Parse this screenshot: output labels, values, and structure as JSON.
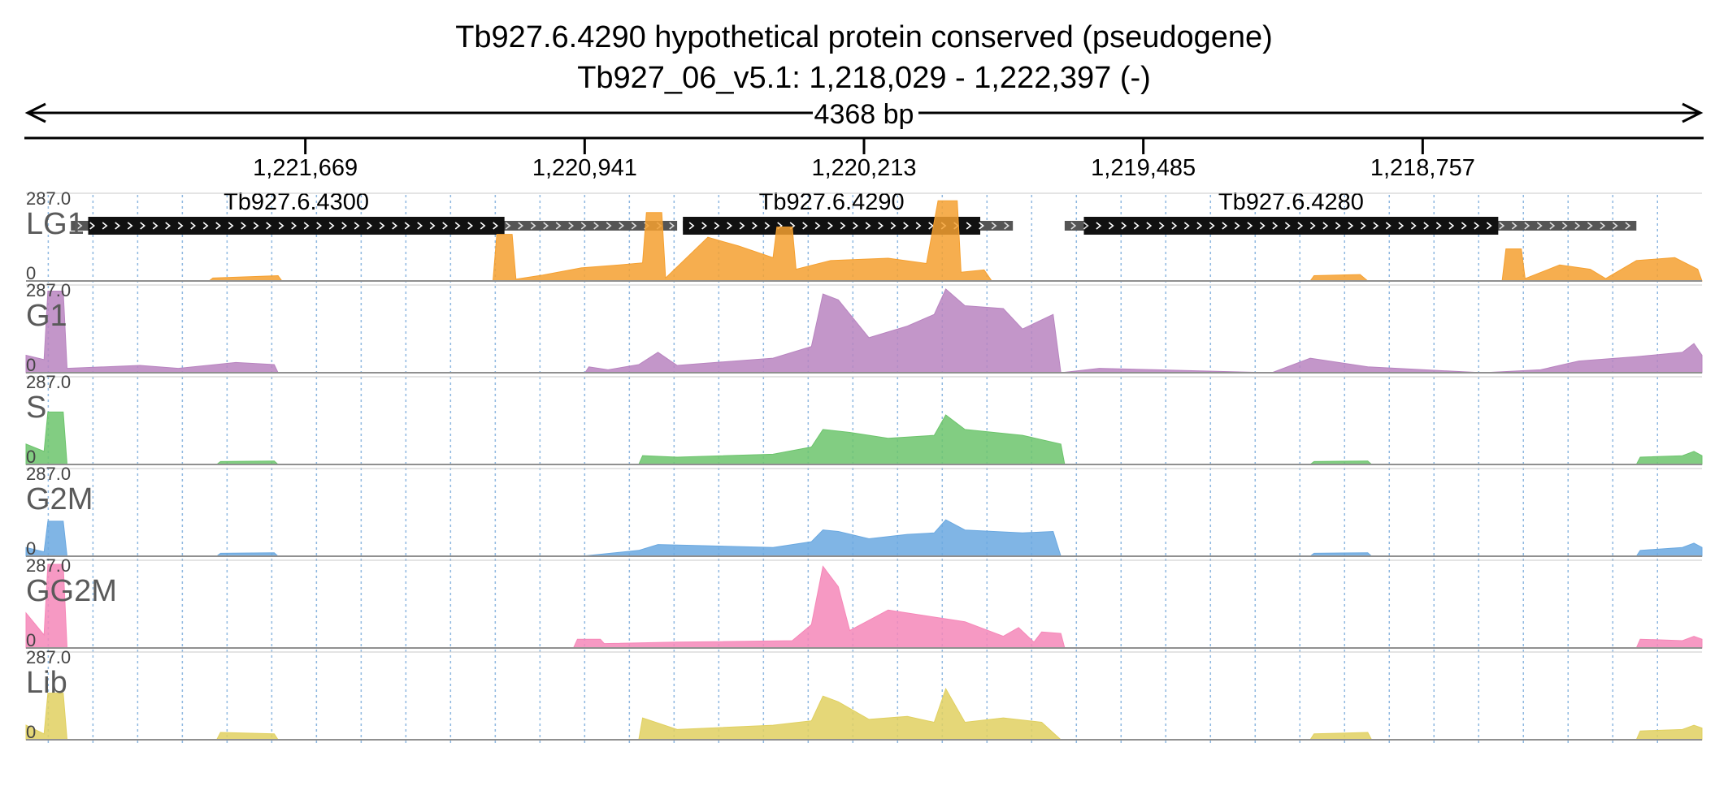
{
  "chart_data": {
    "type": "area",
    "title": "Tb927.6.4290  hypothetical protein  conserved (pseudogene)",
    "subtitle": "Tb927_06_v5.1: 1,218,029 - 1,222,397 (-)",
    "span_label": "4368 bp",
    "x_range": [
      1222397,
      1218029
    ],
    "x_ticks": [
      1221669,
      1220941,
      1220213,
      1219485,
      1218757
    ],
    "x_tick_labels": [
      "1,221,669",
      "1,220,941",
      "1,220,213",
      "1,219,485",
      "1,218,757"
    ],
    "genes": [
      {
        "name": "Tb927.6.4300",
        "utr_start": 1222280,
        "cds_start": 1222235,
        "cds_end": 1221150,
        "utr_end": 1220700
      },
      {
        "name": "Tb927.6.4290",
        "utr_start": 1220685,
        "cds_start": 1220685,
        "cds_end": 1219910,
        "utr_end": 1219825
      },
      {
        "name": "Tb927.6.4280",
        "utr_start": 1219690,
        "cds_start": 1219640,
        "cds_end": 1218560,
        "utr_end": 1218200
      }
    ],
    "grid": true,
    "ylim": [
      0,
      287.0
    ],
    "y_max_label": "287.0",
    "y_min_label": "0",
    "series": [
      {
        "name": "LG1",
        "color": "#f5a030",
        "points": [
          [
            1222397,
            0
          ],
          [
            1221920,
            0
          ],
          [
            1221910,
            10
          ],
          [
            1221740,
            18
          ],
          [
            1221730,
            0
          ],
          [
            1221180,
            0
          ],
          [
            1221170,
            160
          ],
          [
            1221130,
            160
          ],
          [
            1221120,
            6
          ],
          [
            1221050,
            20
          ],
          [
            1220950,
            45
          ],
          [
            1220850,
            55
          ],
          [
            1220790,
            62
          ],
          [
            1220780,
            235
          ],
          [
            1220740,
            235
          ],
          [
            1220730,
            10
          ],
          [
            1220620,
            150
          ],
          [
            1220540,
            120
          ],
          [
            1220450,
            80
          ],
          [
            1220440,
            185
          ],
          [
            1220400,
            185
          ],
          [
            1220390,
            40
          ],
          [
            1220300,
            70
          ],
          [
            1220150,
            78
          ],
          [
            1220050,
            60
          ],
          [
            1220020,
            275
          ],
          [
            1219970,
            275
          ],
          [
            1219960,
            30
          ],
          [
            1219900,
            38
          ],
          [
            1219880,
            0
          ],
          [
            1219050,
            0
          ],
          [
            1219040,
            18
          ],
          [
            1218920,
            22
          ],
          [
            1218900,
            0
          ],
          [
            1218550,
            0
          ],
          [
            1218540,
            110
          ],
          [
            1218500,
            110
          ],
          [
            1218490,
            8
          ],
          [
            1218400,
            55
          ],
          [
            1218320,
            40
          ],
          [
            1218280,
            8
          ],
          [
            1218200,
            70
          ],
          [
            1218100,
            80
          ],
          [
            1218040,
            40
          ],
          [
            1218029,
            0
          ]
        ]
      },
      {
        "name": "G1",
        "color": "#b884c0",
        "points": [
          [
            1222397,
            60
          ],
          [
            1222350,
            45
          ],
          [
            1222340,
            280
          ],
          [
            1222300,
            280
          ],
          [
            1222290,
            15
          ],
          [
            1222100,
            25
          ],
          [
            1222000,
            15
          ],
          [
            1221850,
            35
          ],
          [
            1221750,
            28
          ],
          [
            1221740,
            0
          ],
          [
            1220940,
            0
          ],
          [
            1220930,
            20
          ],
          [
            1220880,
            10
          ],
          [
            1220800,
            28
          ],
          [
            1220750,
            70
          ],
          [
            1220700,
            25
          ],
          [
            1220600,
            35
          ],
          [
            1220450,
            50
          ],
          [
            1220350,
            90
          ],
          [
            1220320,
            270
          ],
          [
            1220280,
            250
          ],
          [
            1220200,
            120
          ],
          [
            1220100,
            160
          ],
          [
            1220030,
            200
          ],
          [
            1220000,
            290
          ],
          [
            1219950,
            230
          ],
          [
            1219850,
            220
          ],
          [
            1219800,
            150
          ],
          [
            1219720,
            200
          ],
          [
            1219700,
            0
          ],
          [
            1219600,
            15
          ],
          [
            1219450,
            10
          ],
          [
            1219150,
            0
          ],
          [
            1219050,
            50
          ],
          [
            1218900,
            20
          ],
          [
            1218600,
            0
          ],
          [
            1218450,
            10
          ],
          [
            1218350,
            40
          ],
          [
            1218200,
            55
          ],
          [
            1218080,
            70
          ],
          [
            1218050,
            100
          ],
          [
            1218029,
            60
          ]
        ]
      },
      {
        "name": "S",
        "color": "#6cc46c",
        "points": [
          [
            1222397,
            70
          ],
          [
            1222350,
            45
          ],
          [
            1222340,
            180
          ],
          [
            1222300,
            180
          ],
          [
            1222290,
            0
          ],
          [
            1221900,
            0
          ],
          [
            1221890,
            10
          ],
          [
            1221750,
            12
          ],
          [
            1221740,
            0
          ],
          [
            1220800,
            0
          ],
          [
            1220790,
            30
          ],
          [
            1220700,
            25
          ],
          [
            1220450,
            35
          ],
          [
            1220350,
            60
          ],
          [
            1220320,
            120
          ],
          [
            1220250,
            110
          ],
          [
            1220150,
            90
          ],
          [
            1220030,
            100
          ],
          [
            1220000,
            170
          ],
          [
            1219950,
            120
          ],
          [
            1219800,
            100
          ],
          [
            1219700,
            70
          ],
          [
            1219690,
            0
          ],
          [
            1219050,
            0
          ],
          [
            1219040,
            10
          ],
          [
            1218900,
            12
          ],
          [
            1218890,
            0
          ],
          [
            1218200,
            0
          ],
          [
            1218190,
            25
          ],
          [
            1218080,
            30
          ],
          [
            1218050,
            45
          ],
          [
            1218029,
            30
          ]
        ]
      },
      {
        "name": "G2M",
        "color": "#6aa8e0",
        "points": [
          [
            1222397,
            30
          ],
          [
            1222350,
            15
          ],
          [
            1222340,
            120
          ],
          [
            1222300,
            120
          ],
          [
            1222290,
            0
          ],
          [
            1221900,
            0
          ],
          [
            1221890,
            10
          ],
          [
            1221750,
            12
          ],
          [
            1221740,
            0
          ],
          [
            1220950,
            0
          ],
          [
            1220800,
            20
          ],
          [
            1220750,
            40
          ],
          [
            1220450,
            30
          ],
          [
            1220350,
            50
          ],
          [
            1220320,
            90
          ],
          [
            1220280,
            85
          ],
          [
            1220200,
            60
          ],
          [
            1220100,
            75
          ],
          [
            1220030,
            80
          ],
          [
            1220000,
            125
          ],
          [
            1219950,
            90
          ],
          [
            1219800,
            80
          ],
          [
            1219720,
            85
          ],
          [
            1219700,
            0
          ],
          [
            1219050,
            0
          ],
          [
            1219040,
            10
          ],
          [
            1218900,
            12
          ],
          [
            1218890,
            0
          ],
          [
            1218200,
            0
          ],
          [
            1218190,
            20
          ],
          [
            1218080,
            30
          ],
          [
            1218050,
            45
          ],
          [
            1218029,
            30
          ]
        ]
      },
      {
        "name": "GG2M",
        "color": "#f587b8",
        "points": [
          [
            1222397,
            120
          ],
          [
            1222350,
            45
          ],
          [
            1222340,
            290
          ],
          [
            1222300,
            290
          ],
          [
            1222290,
            0
          ],
          [
            1220970,
            0
          ],
          [
            1220960,
            30
          ],
          [
            1220900,
            30
          ],
          [
            1220890,
            15
          ],
          [
            1220700,
            20
          ],
          [
            1220400,
            25
          ],
          [
            1220350,
            80
          ],
          [
            1220320,
            280
          ],
          [
            1220280,
            210
          ],
          [
            1220250,
            60
          ],
          [
            1220150,
            130
          ],
          [
            1220050,
            110
          ],
          [
            1219950,
            90
          ],
          [
            1219850,
            40
          ],
          [
            1219810,
            70
          ],
          [
            1219770,
            20
          ],
          [
            1219750,
            55
          ],
          [
            1219700,
            50
          ],
          [
            1219690,
            0
          ],
          [
            1218200,
            0
          ],
          [
            1218190,
            30
          ],
          [
            1218080,
            25
          ],
          [
            1218050,
            40
          ],
          [
            1218029,
            30
          ]
        ]
      },
      {
        "name": "Lib",
        "color": "#e0d060",
        "points": [
          [
            1222397,
            50
          ],
          [
            1222350,
            20
          ],
          [
            1222340,
            160
          ],
          [
            1222300,
            160
          ],
          [
            1222290,
            0
          ],
          [
            1221900,
            0
          ],
          [
            1221890,
            25
          ],
          [
            1221750,
            20
          ],
          [
            1221740,
            0
          ],
          [
            1220800,
            0
          ],
          [
            1220790,
            75
          ],
          [
            1220700,
            35
          ],
          [
            1220450,
            50
          ],
          [
            1220350,
            65
          ],
          [
            1220320,
            150
          ],
          [
            1220280,
            130
          ],
          [
            1220200,
            70
          ],
          [
            1220100,
            80
          ],
          [
            1220030,
            60
          ],
          [
            1220000,
            175
          ],
          [
            1219950,
            60
          ],
          [
            1219850,
            75
          ],
          [
            1219750,
            60
          ],
          [
            1219700,
            0
          ],
          [
            1219050,
            0
          ],
          [
            1219040,
            20
          ],
          [
            1218900,
            25
          ],
          [
            1218890,
            0
          ],
          [
            1218200,
            0
          ],
          [
            1218190,
            30
          ],
          [
            1218080,
            35
          ],
          [
            1218050,
            50
          ],
          [
            1218029,
            40
          ]
        ]
      }
    ]
  }
}
